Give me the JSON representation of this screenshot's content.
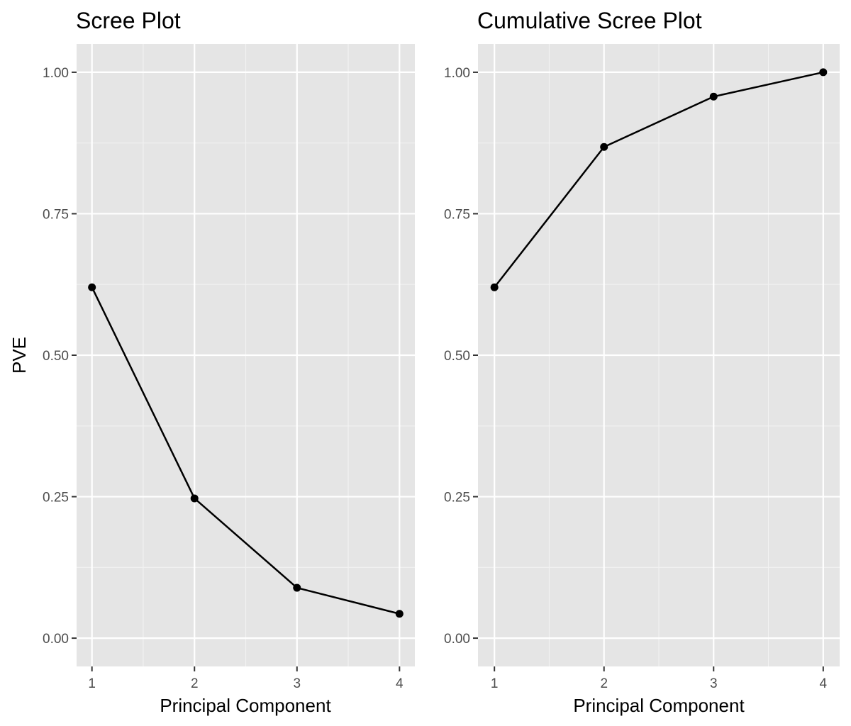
{
  "chart_data": [
    {
      "type": "line",
      "title": "Scree Plot",
      "xlabel": "Principal Component",
      "ylabel": "PVE",
      "x": [
        1,
        2,
        3,
        4
      ],
      "values": [
        0.62,
        0.247,
        0.089,
        0.043
      ],
      "xlim": [
        0.85,
        4.15
      ],
      "ylim": [
        -0.05,
        1.05
      ],
      "xticks": [
        1,
        2,
        3,
        4
      ],
      "xtick_labels": [
        "1",
        "2",
        "3",
        "4"
      ],
      "yticks": [
        0,
        0.25,
        0.5,
        0.75,
        1
      ],
      "ytick_labels": [
        "0.00",
        "0.25",
        "0.50",
        "0.75",
        "1.00"
      ],
      "grid": true
    },
    {
      "type": "line",
      "title": "Cumulative Scree Plot",
      "xlabel": "Principal Component",
      "ylabel": "",
      "x": [
        1,
        2,
        3,
        4
      ],
      "values": [
        0.62,
        0.868,
        0.957,
        1.0
      ],
      "xlim": [
        0.85,
        4.15
      ],
      "ylim": [
        -0.05,
        1.05
      ],
      "xticks": [
        1,
        2,
        3,
        4
      ],
      "xtick_labels": [
        "1",
        "2",
        "3",
        "4"
      ],
      "yticks": [
        0,
        0.25,
        0.5,
        0.75,
        1
      ],
      "ytick_labels": [
        "0.00",
        "0.25",
        "0.50",
        "0.75",
        "1.00"
      ],
      "grid": true
    }
  ],
  "colors": {
    "panel_background": "#e5e5e5",
    "grid_major": "#ffffff",
    "grid_minor": "#f2f2f2",
    "line": "#000000",
    "tick": "#333333",
    "tick_label": "#4d4d4d"
  }
}
